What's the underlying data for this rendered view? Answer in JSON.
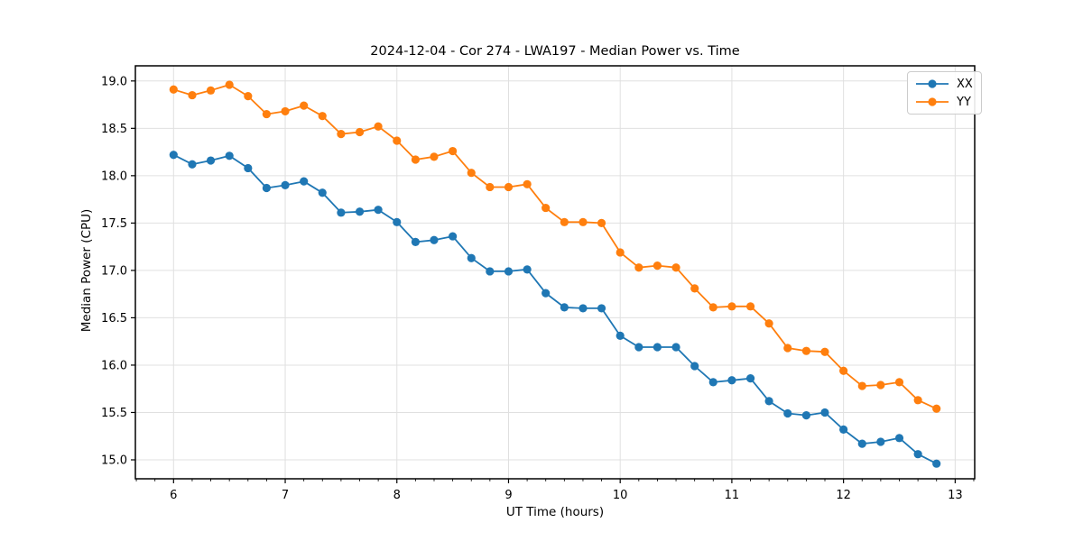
{
  "chart_data": {
    "type": "line",
    "title": "2024-12-04 - Cor 274 - LWA197 - Median Power vs. Time",
    "xlabel": "UT Time (hours)",
    "ylabel": "Median Power (CPU)",
    "xlim": [
      5.658,
      13.175
    ],
    "ylim": [
      14.8,
      19.16
    ],
    "xtick_values": [
      6,
      7,
      8,
      9,
      10,
      11,
      12,
      13
    ],
    "xtick_labels": [
      "6",
      "7",
      "8",
      "9",
      "10",
      "11",
      "12",
      "13"
    ],
    "ytick_values": [
      15.0,
      15.5,
      16.0,
      16.5,
      17.0,
      17.5,
      18.0,
      18.5,
      19.0
    ],
    "ytick_labels": [
      "15.0",
      "15.5",
      "16.0",
      "16.5",
      "17.0",
      "17.5",
      "18.0",
      "18.5",
      "19.0"
    ],
    "x_minor_step_hours": 0.1666667,
    "grid": "major-only",
    "legend_position": "upper-right",
    "x": [
      6.0,
      6.167,
      6.333,
      6.5,
      6.667,
      6.833,
      7.0,
      7.167,
      7.333,
      7.5,
      7.667,
      7.833,
      8.0,
      8.167,
      8.333,
      8.5,
      8.667,
      8.833,
      9.0,
      9.167,
      9.333,
      9.5,
      9.667,
      9.833,
      10.0,
      10.167,
      10.333,
      10.5,
      10.667,
      10.833,
      11.0,
      11.167,
      11.333,
      11.5,
      11.667,
      11.833,
      12.0,
      12.167,
      12.333,
      12.5,
      12.667,
      12.833
    ],
    "series": [
      {
        "name": "XX",
        "color": "#1f77b4",
        "values": [
          18.22,
          18.12,
          18.16,
          18.21,
          18.08,
          17.87,
          17.9,
          17.94,
          17.82,
          17.61,
          17.62,
          17.64,
          17.51,
          17.3,
          17.32,
          17.36,
          17.13,
          16.99,
          16.99,
          17.01,
          16.76,
          16.61,
          16.6,
          16.6,
          16.31,
          16.19,
          16.19,
          16.19,
          15.99,
          15.82,
          15.84,
          15.86,
          15.62,
          15.49,
          15.47,
          15.5,
          15.32,
          15.17,
          15.19,
          15.23,
          15.06,
          14.96
        ]
      },
      {
        "name": "YY",
        "color": "#ff7f0e",
        "values": [
          18.91,
          18.85,
          18.9,
          18.96,
          18.84,
          18.65,
          18.68,
          18.74,
          18.63,
          18.44,
          18.46,
          18.52,
          18.37,
          18.17,
          18.2,
          18.26,
          18.03,
          17.88,
          17.88,
          17.91,
          17.66,
          17.51,
          17.51,
          17.5,
          17.19,
          17.03,
          17.05,
          17.03,
          16.81,
          16.61,
          16.62,
          16.62,
          16.44,
          16.18,
          16.15,
          16.14,
          15.94,
          15.78,
          15.79,
          15.82,
          15.63,
          15.54
        ]
      }
    ],
    "style": {
      "grid_color": "#e0e0e0",
      "spine_color": "#000000",
      "tick_color": "#000000",
      "tick_label_size": 13,
      "marker_radius": 4.6,
      "line_width": 1.8
    }
  }
}
